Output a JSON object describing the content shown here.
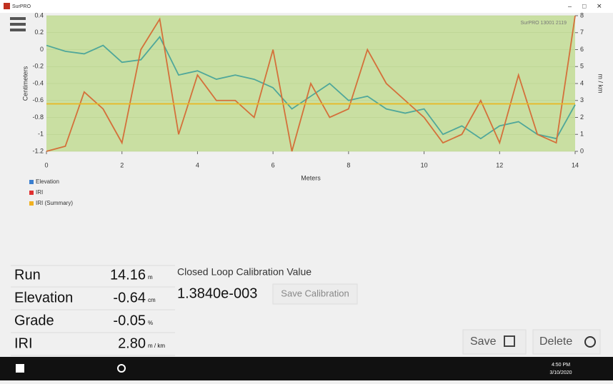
{
  "window": {
    "title": "SurPRO"
  },
  "chart_data": {
    "type": "line",
    "annotation": "SurPRO 13001 2119",
    "x_label": "Meters",
    "y_label": "Centimeters",
    "y2_label": "m / km",
    "x": [
      0,
      0.5,
      1,
      1.5,
      2,
      2.5,
      3,
      3.5,
      4,
      4.5,
      5,
      5.5,
      6,
      6.5,
      7,
      7.5,
      8,
      8.5,
      9,
      9.5,
      10,
      10.5,
      11,
      11.5,
      12,
      12.5,
      13,
      13.5,
      14
    ],
    "series": [
      {
        "name": "Elevation",
        "color": "#4fa79a",
        "legend_color": "#3a7fd0",
        "values": [
          0.05,
          -0.02,
          -0.05,
          0.05,
          -0.15,
          -0.12,
          0.15,
          -0.3,
          -0.25,
          -0.35,
          -0.3,
          -0.35,
          -0.45,
          -0.7,
          -0.55,
          -0.4,
          -0.6,
          -0.55,
          -0.7,
          -0.75,
          -0.7,
          -1.0,
          -0.9,
          -1.05,
          -0.9,
          -0.85,
          -1.0,
          -1.05,
          -0.65
        ]
      },
      {
        "name": "IRI",
        "color": "#d4703a",
        "legend_color": "#e03030",
        "axis": "y2",
        "values": [
          0,
          0.3,
          3.5,
          2.5,
          0.5,
          6,
          7.8,
          1,
          4.5,
          3,
          3,
          2,
          6,
          0,
          4,
          2,
          2.5,
          6,
          4,
          3,
          2,
          0.5,
          1,
          3,
          0.5,
          4.5,
          1,
          0.5,
          8
        ]
      }
    ],
    "reference_lines": [
      {
        "name": "IRI (Summary)",
        "color": "#e8b820",
        "legend_color": "#f0b020",
        "axis": "y2",
        "value": 2.8
      }
    ],
    "xlim": [
      0,
      14
    ],
    "xticks": [
      0,
      2,
      4,
      6,
      8,
      10,
      12,
      14
    ],
    "ylim": [
      -1.2,
      0.4
    ],
    "yticks": [
      -1.2,
      -1,
      -0.8,
      -0.6,
      -0.4,
      -0.2,
      0,
      0.2,
      0.4
    ],
    "y2lim": [
      0,
      8
    ],
    "y2ticks": [
      0,
      1,
      2,
      3,
      4,
      5,
      6,
      7,
      8
    ],
    "grid": true
  },
  "readouts": [
    {
      "label": "Run",
      "value": "14.16",
      "unit": "m"
    },
    {
      "label": "Elevation",
      "value": "-0.64",
      "unit": "cm"
    },
    {
      "label": "Grade",
      "value": "-0.05",
      "unit": "%"
    },
    {
      "label": "IRI",
      "value": "2.80",
      "unit": "m / km"
    }
  ],
  "calibration": {
    "title": "Closed Loop Calibration Value",
    "value": "1.3840e-003",
    "button": "Save Calibration"
  },
  "buttons": {
    "save": "Save",
    "delete": "Delete"
  },
  "taskbar": {
    "time": "4:50 PM",
    "date": "3/10/2020"
  }
}
